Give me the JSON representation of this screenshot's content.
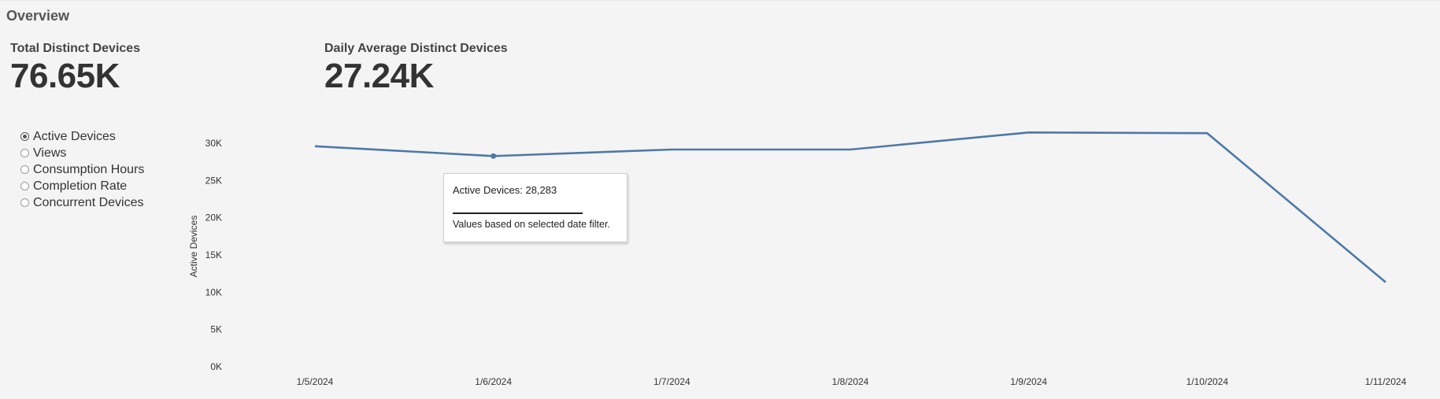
{
  "section": {
    "title": "Overview"
  },
  "kpis": [
    {
      "label": "Total Distinct Devices",
      "value": "76.65K"
    },
    {
      "label": "Daily Average Distinct Devices",
      "value": "27.24K"
    }
  ],
  "metric_selector": {
    "selected": "Active Devices",
    "options": [
      "Active Devices",
      "Views",
      "Consumption Hours",
      "Completion Rate",
      "Concurrent Devices"
    ]
  },
  "tooltip": {
    "line1": "Active Devices: 28,283",
    "rule": "____________________",
    "line2": "Values based on selected date filter."
  },
  "colors": {
    "line": "#4e79a7",
    "axis_text": "#333333"
  },
  "chart_data": {
    "type": "line",
    "ylabel": "Active Devices",
    "xlabel": "",
    "categories": [
      "1/5/2024",
      "1/6/2024",
      "1/7/2024",
      "1/8/2024",
      "1/9/2024",
      "1/10/2024",
      "1/11/2024"
    ],
    "y_ticks": [
      "0K",
      "5K",
      "10K",
      "15K",
      "20K",
      "25K",
      "30K"
    ],
    "series": [
      {
        "name": "Active Devices",
        "values": [
          29600,
          28283,
          29150,
          29150,
          31450,
          31350,
          11350
        ]
      }
    ],
    "highlighted_point": {
      "category": "1/6/2024",
      "value": 28283
    },
    "ylim": [
      0,
      30000
    ],
    "grid": false
  }
}
